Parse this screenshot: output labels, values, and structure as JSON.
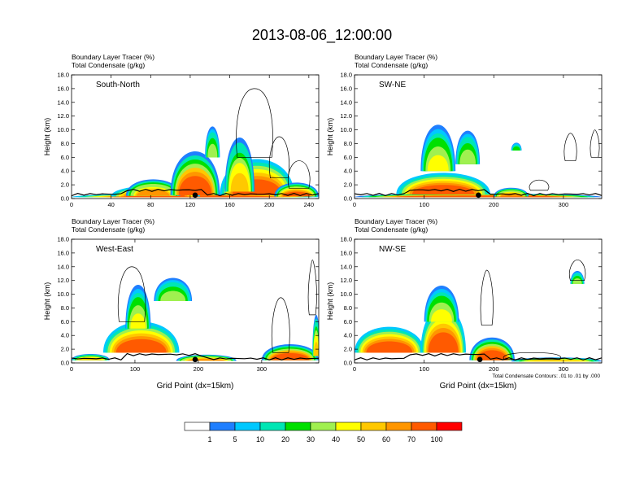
{
  "title": "2013-08-06_12:00:00",
  "footnote": "Total Condensate Contours: .01 to .01 by .000",
  "colorbar": {
    "colors": [
      "#ffffff",
      "#1f7fff",
      "#00c8ff",
      "#00e6b4",
      "#00e000",
      "#a0f050",
      "#ffff00",
      "#ffc800",
      "#ff9600",
      "#ff5a00",
      "#ff0000"
    ],
    "labels": [
      "1",
      "5",
      "10",
      "20",
      "30",
      "40",
      "50",
      "60",
      "70",
      "100"
    ]
  },
  "chart_data": [
    {
      "type": "heatmap",
      "subtitle_lines": [
        "Boundary Layer Tracer   (%)",
        "Total Condensate   (g/kg)"
      ],
      "section_label": "South-North",
      "ylabel": "Height (km)",
      "xlabel": "",
      "xlim": [
        0,
        250
      ],
      "ylim": [
        0,
        18
      ],
      "xticks": [
        "0",
        "40",
        "80",
        "120",
        "160",
        "200",
        "240"
      ],
      "xtick_values": [
        0,
        40,
        80,
        120,
        160,
        200,
        240
      ],
      "yticks": [
        "0.0",
        "2.0",
        "4.0",
        "6.0",
        "8.0",
        "10.0",
        "12.0",
        "14.0",
        "16.0",
        "18.0"
      ],
      "marker_x": 125,
      "plumes": [
        {
          "x0": 0,
          "x1": 250,
          "top": 0.9,
          "ground": 0.2,
          "peak": 100
        },
        {
          "x0": 40,
          "x1": 130,
          "top": 2.4,
          "ground": 0.3,
          "peak": 100
        },
        {
          "x0": 55,
          "x1": 110,
          "top": 3.6,
          "ground": 0.4,
          "peak": 70
        },
        {
          "x0": 100,
          "x1": 150,
          "top": 9.0,
          "ground": 0.5,
          "peak": 90
        },
        {
          "x0": 135,
          "x1": 150,
          "top": 12.0,
          "ground": 6.0,
          "peak": 40
        },
        {
          "x0": 150,
          "x1": 225,
          "top": 7.5,
          "ground": 0.5,
          "peak": 100
        },
        {
          "x0": 155,
          "x1": 185,
          "top": 11.5,
          "ground": 1.0,
          "peak": 60
        },
        {
          "x0": 205,
          "x1": 250,
          "top": 3.0,
          "ground": 0.3,
          "peak": 80
        }
      ],
      "clouds": [
        {
          "x": 185,
          "y": 6.0,
          "w": 35,
          "h": 10.0
        },
        {
          "x": 210,
          "y": 3.0,
          "w": 18,
          "h": 6.0
        },
        {
          "x": 230,
          "y": 1.5,
          "w": 20,
          "h": 4.0
        }
      ]
    },
    {
      "type": "heatmap",
      "subtitle_lines": [
        "Boundary Layer Tracer   (%)",
        "Total Condensate   (g/kg)"
      ],
      "section_label": "SW-NE",
      "ylabel": "Height (km)",
      "xlabel": "",
      "xlim": [
        0,
        355
      ],
      "ylim": [
        0,
        18
      ],
      "xticks": [
        "0",
        "100",
        "200",
        "300"
      ],
      "xtick_values": [
        0,
        100,
        200,
        300
      ],
      "yticks": [
        "0.0",
        "2.0",
        "4.0",
        "6.0",
        "8.0",
        "10.0",
        "12.0",
        "14.0",
        "16.0",
        "18.0"
      ],
      "marker_x": 178,
      "plumes": [
        {
          "x0": 0,
          "x1": 355,
          "top": 0.9,
          "ground": 0.2,
          "peak": 90
        },
        {
          "x0": 60,
          "x1": 195,
          "top": 4.8,
          "ground": 0.6,
          "peak": 100
        },
        {
          "x0": 95,
          "x1": 145,
          "top": 13.0,
          "ground": 4.0,
          "peak": 50
        },
        {
          "x0": 145,
          "x1": 180,
          "top": 11.5,
          "ground": 5.0,
          "peak": 40
        },
        {
          "x0": 200,
          "x1": 250,
          "top": 2.0,
          "ground": 0.3,
          "peak": 70
        },
        {
          "x0": 225,
          "x1": 240,
          "top": 8.5,
          "ground": 7.0,
          "peak": 30
        }
      ],
      "clouds": [
        {
          "x": 310,
          "y": 5.5,
          "w": 15,
          "h": 4.0
        },
        {
          "x": 345,
          "y": 6.0,
          "w": 10,
          "h": 4.0
        },
        {
          "x": 265,
          "y": 1.2,
          "w": 25,
          "h": 1.5
        }
      ]
    },
    {
      "type": "heatmap",
      "subtitle_lines": [
        "Boundary Layer Tracer   (%)",
        "Total Condensate   (g/kg)"
      ],
      "section_label": "West-East",
      "ylabel": "Height (km)",
      "xlabel": "Grid Point (dx=15km)",
      "xlim": [
        0,
        390
      ],
      "ylim": [
        0,
        18
      ],
      "xticks": [
        "0",
        "100",
        "200",
        "300"
      ],
      "xtick_values": [
        0,
        100,
        200,
        300
      ],
      "yticks": [
        "0.0",
        "2.0",
        "4.0",
        "6.0",
        "8.0",
        "10.0",
        "12.0",
        "14.0",
        "16.0",
        "18.0"
      ],
      "marker_x": 195,
      "plumes": [
        {
          "x0": 0,
          "x1": 60,
          "top": 1.6,
          "ground": 0.4,
          "peak": 60
        },
        {
          "x0": 50,
          "x1": 170,
          "top": 7.5,
          "ground": 1.5,
          "peak": 100
        },
        {
          "x0": 85,
          "x1": 125,
          "top": 13.5,
          "ground": 5.0,
          "peak": 50
        },
        {
          "x0": 130,
          "x1": 190,
          "top": 13.5,
          "ground": 9.0,
          "peak": 40
        },
        {
          "x0": 165,
          "x1": 260,
          "top": 1.5,
          "ground": 0.3,
          "peak": 70
        },
        {
          "x0": 300,
          "x1": 390,
          "top": 3.5,
          "ground": 0.4,
          "peak": 90
        },
        {
          "x0": 380,
          "x1": 392,
          "top": 9.0,
          "ground": 1.0,
          "peak": 60
        }
      ],
      "clouds": [
        {
          "x": 95,
          "y": 6.0,
          "w": 40,
          "h": 8.0
        },
        {
          "x": 330,
          "y": 1.5,
          "w": 25,
          "h": 8.0
        },
        {
          "x": 380,
          "y": 7.0,
          "w": 10,
          "h": 8.0
        }
      ]
    },
    {
      "type": "heatmap",
      "subtitle_lines": [
        "Boundary Layer Tracer   (%)",
        "Total Condensate   (g/kg)"
      ],
      "section_label": "NW-SE",
      "ylabel": "Height (km)",
      "xlabel": "Grid Point (dx=15km)",
      "xlim": [
        0,
        355
      ],
      "ylim": [
        0,
        18
      ],
      "xticks": [
        "0",
        "100",
        "200",
        "300"
      ],
      "xtick_values": [
        0,
        100,
        200,
        300
      ],
      "yticks": [
        "0.0",
        "2.0",
        "4.0",
        "6.0",
        "8.0",
        "10.0",
        "12.0",
        "14.0",
        "16.0",
        "18.0"
      ],
      "marker_x": 180,
      "plumes": [
        {
          "x0": 0,
          "x1": 100,
          "top": 6.5,
          "ground": 1.5,
          "peak": 100
        },
        {
          "x0": 95,
          "x1": 160,
          "top": 10.5,
          "ground": 1.5,
          "peak": 100
        },
        {
          "x0": 100,
          "x1": 150,
          "top": 13.0,
          "ground": 6.0,
          "peak": 50
        },
        {
          "x0": 165,
          "x1": 230,
          "top": 4.8,
          "ground": 0.4,
          "peak": 90
        },
        {
          "x0": 225,
          "x1": 355,
          "top": 1.0,
          "ground": 0.2,
          "peak": 60
        },
        {
          "x0": 310,
          "x1": 330,
          "top": 14.0,
          "ground": 11.5,
          "peak": 40
        }
      ],
      "clouds": [
        {
          "x": 190,
          "y": 5.5,
          "w": 15,
          "h": 8.0
        },
        {
          "x": 320,
          "y": 12.0,
          "w": 20,
          "h": 3.0
        },
        {
          "x": 255,
          "y": 0.5,
          "w": 80,
          "h": 1.0
        }
      ]
    }
  ]
}
